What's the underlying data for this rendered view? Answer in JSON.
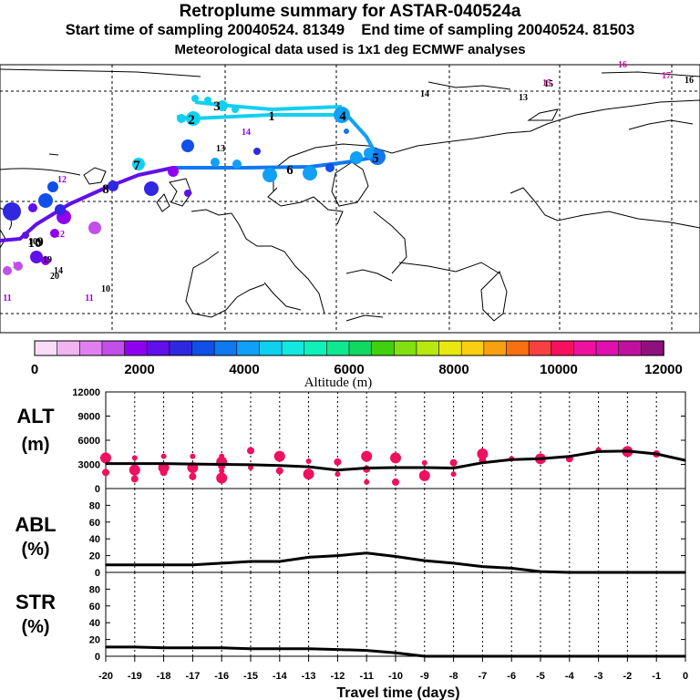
{
  "header": {
    "title": "Retroplume summary for ASTAR-040524a",
    "start_label": "Start time of sampling 20040524. 81349",
    "end_label": "End time of sampling 20040524. 81503",
    "met_label": "Meteorological data used is 1x1 deg ECMWF analyses"
  },
  "colorbar": {
    "tick_labels": [
      "0",
      "2000",
      "4000",
      "6000",
      "8000",
      "10000",
      "12000"
    ],
    "title": "Altitude (m)",
    "colors": [
      "#f8dcf8",
      "#f0b4f0",
      "#e080f0",
      "#c050e8",
      "#9000ee",
      "#6010e8",
      "#3028e0",
      "#1050e8",
      "#1078f0",
      "#10a0f8",
      "#10d0f0",
      "#10e8e0",
      "#10f0b8",
      "#10e890",
      "#10d860",
      "#40d010",
      "#80e010",
      "#b8e810",
      "#e8e810",
      "#f8d010",
      "#f8a010",
      "#f87010",
      "#f84040",
      "#f81060",
      "#f010a0",
      "#e010b0",
      "#c010a0",
      "#901080"
    ]
  },
  "map": {
    "trajectory": [
      {
        "day": 1,
        "label": "1"
      },
      {
        "day": 2,
        "label": "2"
      },
      {
        "day": 3,
        "label": "3"
      },
      {
        "day": 4,
        "label": "4"
      },
      {
        "day": 5,
        "label": "5"
      },
      {
        "day": 6,
        "label": "6"
      },
      {
        "day": 7,
        "label": "7"
      },
      {
        "day": 8,
        "label": "8"
      },
      {
        "day": 9,
        "label": "9"
      },
      {
        "day": 10,
        "label": "10"
      }
    ],
    "scattered_labels": [
      "16",
      "17",
      "16",
      "15",
      "15",
      "14",
      "13",
      "14",
      "13",
      "12",
      "12",
      "11",
      "11",
      "10",
      "10",
      "20",
      "19",
      "18",
      "14"
    ]
  },
  "chart_data": [
    {
      "type": "line",
      "title": "ALT",
      "ylabel": "ALT\n(m)",
      "ylabel_line1": "ALT",
      "ylabel_line2": "(m)",
      "x": [
        -20,
        -19,
        -18,
        -17,
        -16,
        -15,
        -14,
        -13,
        -12,
        -11,
        -10,
        -9,
        -8,
        -7,
        -6,
        -5,
        -4,
        -3,
        -2,
        -1,
        0
      ],
      "values": [
        3100,
        3100,
        3100,
        3050,
        3000,
        2950,
        2850,
        2700,
        2300,
        2550,
        2600,
        2600,
        2550,
        3200,
        3600,
        3700,
        4000,
        4600,
        4650,
        4300,
        3500
      ],
      "ylim": [
        0,
        12000
      ],
      "yticks": [
        "0",
        "3000",
        "6000",
        "9000",
        "12000"
      ],
      "yticks_values": [
        0,
        3000,
        6000,
        9000,
        12000
      ],
      "scatter": [
        {
          "x": -20,
          "y": 3800
        },
        {
          "x": -20,
          "y": 2000
        },
        {
          "x": -19,
          "y": 3800
        },
        {
          "x": -19,
          "y": 2300
        },
        {
          "x": -19,
          "y": 1200
        },
        {
          "x": -18,
          "y": 4000
        },
        {
          "x": -18,
          "y": 2600
        },
        {
          "x": -18,
          "y": 2000
        },
        {
          "x": -17,
          "y": 4000
        },
        {
          "x": -17,
          "y": 2600
        },
        {
          "x": -17,
          "y": 1500
        },
        {
          "x": -16,
          "y": 4000
        },
        {
          "x": -16,
          "y": 3300
        },
        {
          "x": -16,
          "y": 2800
        },
        {
          "x": -16,
          "y": 2200
        },
        {
          "x": -16,
          "y": 1300
        },
        {
          "x": -15,
          "y": 4700
        },
        {
          "x": -15,
          "y": 2600
        },
        {
          "x": -14,
          "y": 4000
        },
        {
          "x": -14,
          "y": 2200
        },
        {
          "x": -13,
          "y": 3400
        },
        {
          "x": -13,
          "y": 1800
        },
        {
          "x": -12,
          "y": 3300
        },
        {
          "x": -12,
          "y": 1800
        },
        {
          "x": -11,
          "y": 4000
        },
        {
          "x": -11,
          "y": 2400
        },
        {
          "x": -11,
          "y": 800
        },
        {
          "x": -10,
          "y": 3800
        },
        {
          "x": -10,
          "y": 800
        },
        {
          "x": -9,
          "y": 3200
        },
        {
          "x": -9,
          "y": 1600
        },
        {
          "x": -8,
          "y": 3200
        },
        {
          "x": -8,
          "y": 1800
        },
        {
          "x": -7,
          "y": 4300
        },
        {
          "x": -7,
          "y": 3500
        },
        {
          "x": -6,
          "y": 3700
        },
        {
          "x": -5,
          "y": 3700
        },
        {
          "x": -4,
          "y": 3700
        },
        {
          "x": -3,
          "y": 4800
        },
        {
          "x": -2,
          "y": 4600
        },
        {
          "x": -1,
          "y": 4300
        }
      ]
    },
    {
      "type": "line",
      "title": "ABL",
      "ylabel": "ABL\n(%)",
      "ylabel_line1": "ABL",
      "ylabel_line2": "(%)",
      "x": [
        -20,
        -19,
        -18,
        -17,
        -16,
        -15,
        -14,
        -13,
        -12,
        -11,
        -10,
        -9,
        -8,
        -7,
        -6,
        -5,
        -4,
        -3,
        -2,
        -1,
        0
      ],
      "values": [
        9,
        9,
        9,
        9,
        11,
        13,
        13,
        18,
        20,
        23,
        19,
        14,
        11,
        7,
        5,
        1,
        0,
        0,
        0,
        0,
        0
      ],
      "ylim": [
        0,
        100
      ],
      "yticks": [
        "0",
        "20",
        "40",
        "60",
        "80"
      ],
      "yticks_values": [
        0,
        20,
        40,
        60,
        80
      ]
    },
    {
      "type": "line",
      "title": "STR",
      "ylabel": "STR\n(%)",
      "ylabel_line1": "STR",
      "ylabel_line2": "(%)",
      "x": [
        -20,
        -19,
        -18,
        -17,
        -16,
        -15,
        -14,
        -13,
        -12,
        -11,
        -10,
        -9,
        -8,
        -7,
        -6,
        -5,
        -4,
        -3,
        -2,
        -1,
        0
      ],
      "values": [
        11,
        11,
        10,
        10,
        10,
        9,
        9,
        9,
        8,
        7,
        4,
        0,
        0,
        0,
        0,
        0,
        0,
        0,
        0,
        0,
        0
      ],
      "ylim": [
        0,
        100
      ],
      "yticks": [
        "0",
        "20",
        "40",
        "60",
        "80"
      ],
      "yticks_values": [
        0,
        20,
        40,
        60,
        80
      ]
    }
  ],
  "xaxis": {
    "label": "Travel time (days)",
    "ticks": [
      "-20",
      "-19",
      "-18",
      "-17",
      "-16",
      "-15",
      "-14",
      "-13",
      "-12",
      "-11",
      "-10",
      "-9",
      "-8",
      "-7",
      "-6",
      "-5",
      "-4",
      "-3",
      "-2",
      "-1",
      "0"
    ],
    "tick_values": [
      -20,
      -19,
      -18,
      -17,
      -16,
      -15,
      -14,
      -13,
      -12,
      -11,
      -10,
      -9,
      -8,
      -7,
      -6,
      -5,
      -4,
      -3,
      -2,
      -1,
      0
    ]
  }
}
